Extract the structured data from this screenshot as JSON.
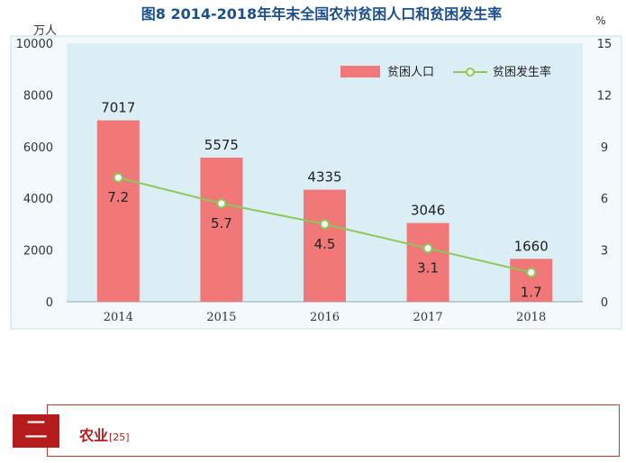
{
  "chart_data": {
    "type": "bar+line",
    "title": "图8   2014-2018年年末全国农村贫困人口和贫困发生率",
    "y_left_unit": "万人",
    "y_right_unit": "%",
    "y_left_range": [
      0,
      10000
    ],
    "y_left_ticks": [
      "0",
      "2000",
      "4000",
      "6000",
      "8000",
      "10000"
    ],
    "y_right_range": [
      0,
      15
    ],
    "y_right_ticks": [
      "0",
      "3",
      "6",
      "9",
      "12",
      "15"
    ],
    "categories": [
      "2014",
      "2015",
      "2016",
      "2017",
      "2018"
    ],
    "series": [
      {
        "name": "贫困人口",
        "axis": "left",
        "type": "bar",
        "values": [
          7017,
          5575,
          4335,
          3046,
          1660
        ],
        "labels": [
          "7017",
          "5575",
          "4335",
          "3046",
          "1660"
        ]
      },
      {
        "name": "贫困发生率",
        "axis": "right",
        "type": "line",
        "values": [
          7.2,
          5.7,
          4.5,
          3.1,
          1.7
        ],
        "labels": [
          "7.2",
          "5.7",
          "4.5",
          "3.1",
          "1.7"
        ]
      }
    ],
    "legend_position": "top-right",
    "colors": {
      "bar": "#f07878",
      "line": "#8cc85a",
      "plot_bg": "#dbeef5",
      "frame": "#c8dfe8"
    }
  },
  "section": {
    "number": "二",
    "title": "农业",
    "ref": "[25]"
  }
}
